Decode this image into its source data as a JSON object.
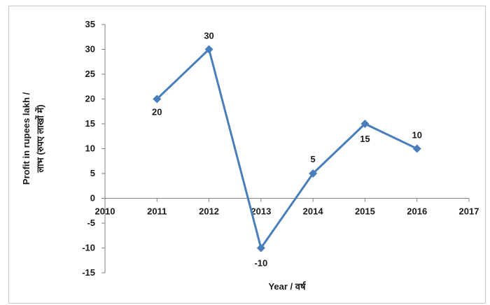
{
  "chart_data": {
    "type": "line",
    "x": [
      2011,
      2012,
      2013,
      2014,
      2015,
      2016
    ],
    "series": [
      {
        "values": [
          20,
          30,
          -10,
          5,
          15,
          10
        ]
      }
    ],
    "data_labels": [
      "20",
      "30",
      "-10",
      "5",
      "15",
      "10"
    ],
    "xlabel": "Year / वर्ष",
    "ylabel_line1": "Profit in rupees lakh /",
    "ylabel_line2": "लाभ (रुपए लाखों में)",
    "xlim": [
      2010,
      2017
    ],
    "ylim": [
      -15,
      35
    ],
    "x_ticks": [
      2010,
      2011,
      2012,
      2013,
      2014,
      2015,
      2016,
      2017
    ],
    "y_ticks": [
      -15,
      -10,
      -5,
      0,
      5,
      10,
      15,
      20,
      25,
      30,
      35
    ],
    "grid": false,
    "legend": "none",
    "line_color": "#4a7ebb",
    "marker": "diamond"
  }
}
